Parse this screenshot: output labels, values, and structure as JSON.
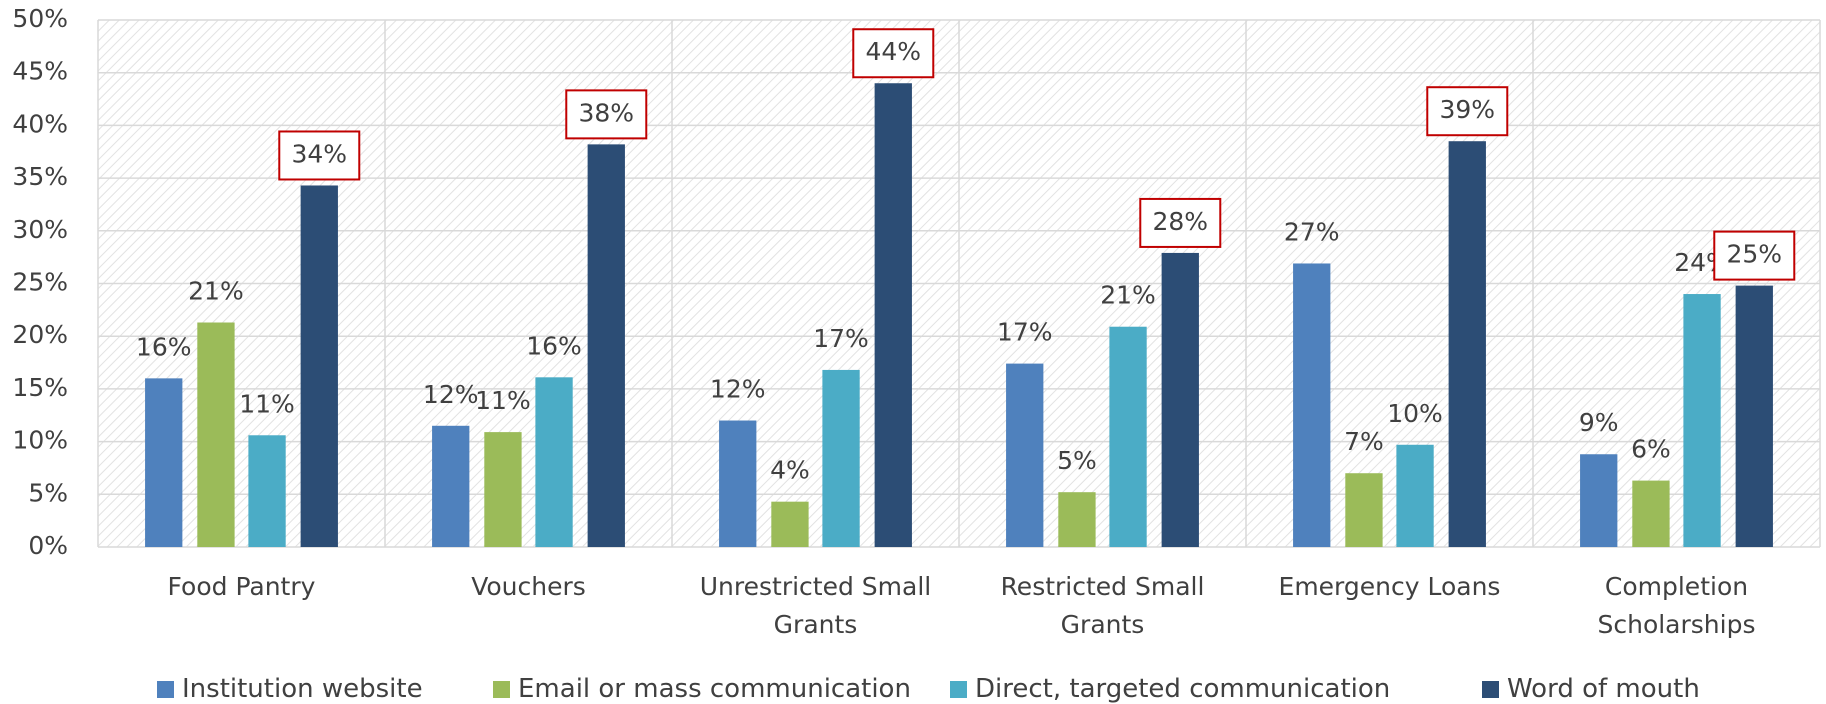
{
  "chart_data": {
    "type": "bar",
    "categories": [
      "Food Pantry",
      "Vouchers",
      "Unrestricted Small Grants",
      "Restricted Small Grants",
      "Emergency Loans",
      "Completion Scholarships"
    ],
    "series": [
      {
        "name": "Institution website",
        "color": "#4f81bd",
        "values": [
          16.0,
          11.5,
          12.0,
          17.4,
          26.9,
          8.8
        ],
        "value_labels": [
          "16%",
          "12%",
          "12%",
          "17%",
          "27%",
          "9%"
        ]
      },
      {
        "name": "Email or mass communication",
        "color": "#9bbb59",
        "values": [
          21.3,
          10.9,
          4.3,
          5.2,
          7.0,
          6.3
        ],
        "value_labels": [
          "21%",
          "11%",
          "4%",
          "5%",
          "7%",
          "6%"
        ]
      },
      {
        "name": "Direct, targeted communication",
        "color": "#4bacc6",
        "values": [
          10.6,
          16.1,
          16.8,
          20.9,
          9.7,
          24.0
        ],
        "value_labels": [
          "11%",
          "16%",
          "17%",
          "21%",
          "10%",
          "24%"
        ]
      },
      {
        "name": "Word of mouth",
        "color": "#2c4d75",
        "values": [
          34.3,
          38.2,
          44.0,
          27.9,
          38.5,
          24.8
        ],
        "value_labels": [
          "34%",
          "38%",
          "44%",
          "28%",
          "39%",
          "25%"
        ],
        "label_box_color": "#c00000"
      }
    ],
    "ylim": [
      0,
      50
    ],
    "yticks": [
      {
        "value": 0,
        "label": "0%"
      },
      {
        "value": 5,
        "label": "5%"
      },
      {
        "value": 10,
        "label": "10%"
      },
      {
        "value": 15,
        "label": "15%"
      },
      {
        "value": 20,
        "label": "20%"
      },
      {
        "value": 25,
        "label": "25%"
      },
      {
        "value": 30,
        "label": "30%"
      },
      {
        "value": 35,
        "label": "35%"
      },
      {
        "value": 40,
        "label": "40%"
      },
      {
        "value": 45,
        "label": "45%"
      },
      {
        "value": 50,
        "label": "50%"
      }
    ],
    "grid": true,
    "legend": "bottom"
  }
}
